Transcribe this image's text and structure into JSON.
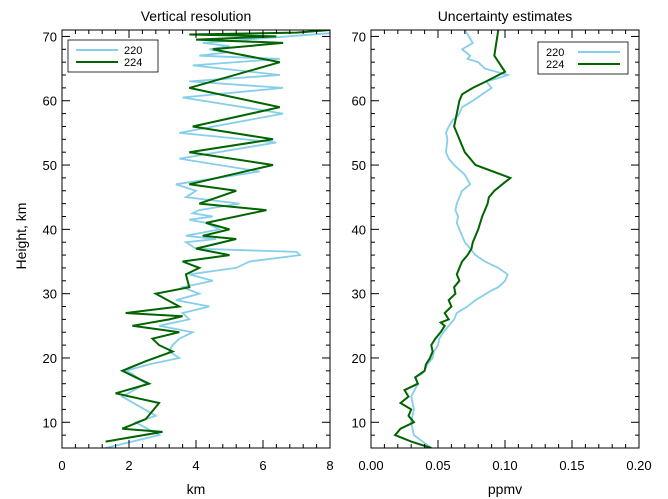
{
  "y_axis_label": "Height, km",
  "chart_data": [
    {
      "type": "line",
      "title": "Vertical resolution",
      "xlabel": "km",
      "ylabel": "Height, km",
      "xlim": [
        0,
        8
      ],
      "ylim": [
        6,
        71
      ],
      "xticks": [
        0,
        2,
        4,
        6,
        8
      ],
      "xtick_labels": [
        "0",
        "2",
        "4",
        "6",
        "8"
      ],
      "yticks": [
        10,
        20,
        30,
        40,
        50,
        60,
        70
      ],
      "ytick_labels": [
        "10",
        "20",
        "30",
        "40",
        "50",
        "60",
        "70"
      ],
      "legend_position": "top-left",
      "series": [
        {
          "name": "220",
          "color": "#87CEEB",
          "x": [
            1.3,
            2.9,
            2.2,
            2.8,
            1.8,
            2.5,
            2.1,
            1.9,
            2.6,
            3.5,
            3.2,
            3.3,
            3.5,
            3.9,
            2.9,
            3.8,
            3.6,
            4.4,
            3.4,
            4.1,
            3.6,
            4.5,
            3.8,
            5.2,
            5.6,
            7.1,
            7.0,
            4.0,
            3.7,
            4.6,
            3.7,
            4.7,
            4.3,
            3.8,
            4.5,
            3.9,
            4.1,
            5.3,
            3.7,
            4.0,
            3.4,
            5.9,
            3.5,
            6.4,
            3.5,
            6.6,
            3.6,
            6.6,
            3.8,
            6.5,
            3.9,
            6.5,
            4.1,
            4.9,
            4.4,
            5.0,
            4.2,
            8.0
          ],
          "y": [
            6.0,
            8.0,
            10.0,
            11.0,
            14.0,
            16.0,
            17.5,
            18.0,
            19.0,
            20.0,
            21.0,
            22.0,
            23.0,
            24.0,
            25.0,
            26.0,
            27.0,
            28.0,
            29.0,
            30.0,
            31.0,
            32.0,
            33.0,
            34.0,
            35.0,
            36.0,
            36.5,
            37.0,
            38.0,
            38.5,
            39.0,
            40.0,
            41.0,
            41.5,
            42.0,
            42.5,
            43.0,
            44.0,
            45.0,
            46.0,
            47.0,
            49.0,
            51.0,
            53.5,
            55.0,
            58.0,
            60.5,
            62.0,
            63.0,
            64.0,
            65.5,
            66.5,
            67.0,
            67.5,
            68.0,
            68.5,
            69.0,
            70.5
          ]
        },
        {
          "name": "224",
          "color": "#006400",
          "x": [
            1.3,
            3.0,
            1.8,
            2.5,
            2.9,
            1.6,
            2.6,
            2.2,
            1.8,
            2.5,
            3.3,
            2.9,
            2.7,
            3.5,
            2.1,
            3.2,
            3.6,
            1.9,
            3.5,
            2.8,
            3.8,
            3.7,
            4.1,
            3.6,
            5.0,
            4.0,
            5.2,
            4.2,
            5.0,
            4.3,
            6.1,
            4.1,
            5.2,
            3.8,
            6.3,
            3.8,
            6.3,
            3.9,
            6.5,
            3.8,
            6.5,
            4.5,
            6.6,
            4.0,
            6.4,
            3.8,
            7.0,
            8.0
          ],
          "y": [
            7.0,
            8.5,
            9.0,
            10.5,
            13.0,
            14.5,
            16.0,
            17.0,
            18.0,
            19.5,
            21.0,
            22.0,
            23.0,
            24.0,
            25.0,
            26.0,
            26.5,
            27.0,
            28.0,
            30.0,
            31.0,
            33.0,
            34.0,
            35.0,
            36.0,
            37.0,
            38.5,
            39.0,
            40.0,
            41.0,
            43.0,
            44.0,
            46.0,
            47.0,
            50.0,
            52.0,
            54.0,
            56.0,
            59.0,
            62.0,
            66.0,
            68.0,
            69.0,
            69.5,
            70.0,
            70.3,
            70.6,
            71.0
          ]
        }
      ]
    },
    {
      "type": "line",
      "title": "Uncertainty estimates",
      "xlabel": "ppmv",
      "ylabel": "",
      "xlim": [
        0.0,
        0.2
      ],
      "ylim": [
        6,
        71
      ],
      "xticks": [
        0.0,
        0.05,
        0.1,
        0.15,
        0.2
      ],
      "xtick_labels": [
        "0.00",
        "0.05",
        "0.10",
        "0.15",
        "0.20"
      ],
      "yticks": [
        10,
        20,
        30,
        40,
        50,
        60,
        70
      ],
      "ytick_labels": [
        "10",
        "20",
        "30",
        "40",
        "50",
        "60",
        "70"
      ],
      "legend_position": "top-right",
      "series": [
        {
          "name": "220",
          "color": "#87CEEB",
          "x": [
            0.045,
            0.032,
            0.03,
            0.032,
            0.03,
            0.035,
            0.033,
            0.038,
            0.04,
            0.042,
            0.046,
            0.047,
            0.05,
            0.051,
            0.054,
            0.056,
            0.058,
            0.06,
            0.062,
            0.064,
            0.068,
            0.072,
            0.075,
            0.078,
            0.082,
            0.086,
            0.09,
            0.095,
            0.1,
            0.102,
            0.095,
            0.085,
            0.078,
            0.074,
            0.07,
            0.068,
            0.066,
            0.064,
            0.065,
            0.063,
            0.064,
            0.066,
            0.068,
            0.074,
            0.07,
            0.062,
            0.058,
            0.056,
            0.057,
            0.056,
            0.058,
            0.061,
            0.064,
            0.066,
            0.068,
            0.076,
            0.083,
            0.09,
            0.086,
            0.095,
            0.102,
            0.085,
            0.08,
            0.072,
            0.074,
            0.068,
            0.076,
            0.07
          ],
          "y": [
            6.0,
            8.0,
            10.0,
            12.0,
            14.0,
            16.0,
            17.0,
            17.5,
            18.0,
            19.0,
            20.0,
            21.0,
            22.0,
            23.0,
            24.0,
            24.5,
            25.0,
            25.5,
            26.0,
            27.0,
            27.5,
            28.0,
            28.5,
            29.0,
            29.5,
            30.0,
            30.5,
            31.0,
            32.0,
            33.0,
            34.0,
            35.0,
            36.0,
            37.0,
            38.0,
            39.0,
            40.0,
            41.0,
            42.0,
            43.0,
            44.0,
            45.0,
            46.0,
            47.0,
            48.5,
            50.0,
            51.0,
            52.0,
            54.0,
            55.0,
            56.0,
            57.0,
            57.5,
            58.0,
            59.0,
            60.0,
            61.0,
            62.0,
            63.0,
            63.5,
            64.0,
            65.0,
            66.0,
            66.5,
            67.0,
            68.0,
            69.0,
            71.0
          ]
        },
        {
          "name": "224",
          "color": "#006400",
          "x": [
            0.045,
            0.03,
            0.018,
            0.022,
            0.032,
            0.028,
            0.03,
            0.022,
            0.028,
            0.025,
            0.035,
            0.033,
            0.04,
            0.041,
            0.044,
            0.046,
            0.045,
            0.048,
            0.052,
            0.055,
            0.052,
            0.058,
            0.055,
            0.06,
            0.058,
            0.063,
            0.062,
            0.066,
            0.064,
            0.066,
            0.068,
            0.072,
            0.075,
            0.076,
            0.08,
            0.083,
            0.085,
            0.087,
            0.088,
            0.092,
            0.098,
            0.104,
            0.078,
            0.07,
            0.066,
            0.064,
            0.062,
            0.064,
            0.066,
            0.068,
            0.076,
            0.086,
            0.1,
            0.092,
            0.095
          ],
          "y": [
            6.0,
            7.0,
            8.0,
            9.0,
            10.0,
            11.0,
            12.0,
            13.0,
            14.0,
            15.0,
            16.0,
            17.0,
            18.0,
            19.0,
            20.0,
            21.0,
            22.0,
            23.0,
            24.0,
            25.0,
            25.5,
            26.0,
            27.0,
            28.0,
            29.0,
            30.0,
            31.0,
            32.0,
            33.0,
            34.0,
            35.0,
            36.0,
            37.0,
            38.0,
            40.0,
            42.0,
            43.0,
            44.0,
            45.0,
            46.0,
            47.0,
            48.0,
            50.0,
            52.0,
            54.0,
            55.0,
            56.0,
            58.0,
            60.0,
            61.0,
            62.0,
            63.0,
            64.5,
            67.0,
            71.0
          ]
        }
      ]
    }
  ]
}
